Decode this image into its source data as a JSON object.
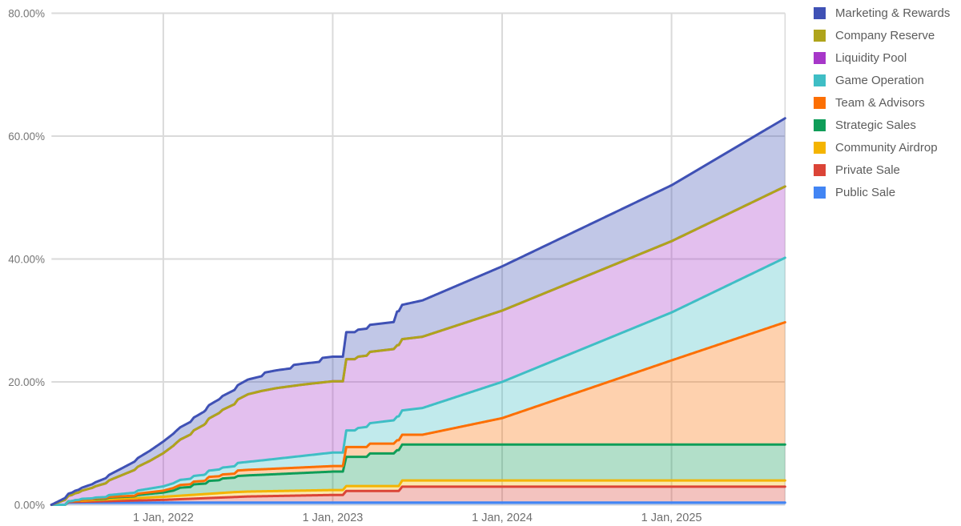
{
  "chart_data": {
    "type": "area",
    "stacked": true,
    "title": "",
    "legend_position": "right",
    "grid": true,
    "grid_color": "#dadada",
    "x_axis": {
      "range": [
        2021.34,
        2025.67
      ],
      "ticks": [
        {
          "t": 2022.0,
          "label": "1 Jan, 2022"
        },
        {
          "t": 2023.0,
          "label": "1 Jan, 2023"
        },
        {
          "t": 2024.0,
          "label": "1 Jan, 2024"
        },
        {
          "t": 2025.0,
          "label": "1 Jan, 2025"
        }
      ]
    },
    "y_axis": {
      "range": [
        0,
        80
      ],
      "ticks": [
        {
          "v": 0,
          "label": "0.00%"
        },
        {
          "v": 20,
          "label": "20.00%"
        },
        {
          "v": 40,
          "label": "40.00%"
        },
        {
          "v": 60,
          "label": "60.00%"
        },
        {
          "v": 80,
          "label": "80.00%"
        }
      ]
    },
    "series_note": "points are [decimalYear, unlockedPercentOfSupply]; series listed bottom-to-top of the stack; legend shows reverse order",
    "series": [
      {
        "name": "Public Sale",
        "color": "#4285F4",
        "points": [
          [
            2021.34,
            0
          ],
          [
            2021.42,
            0
          ],
          [
            2021.44,
            0.35
          ],
          [
            2025.67,
            0.35
          ]
        ]
      },
      {
        "name": "Private Sale",
        "color": "#DB4437",
        "points": [
          [
            2021.34,
            0
          ],
          [
            2021.42,
            0
          ],
          [
            2021.44,
            0.1
          ],
          [
            2022.0,
            0.45
          ],
          [
            2022.5,
            1.0
          ],
          [
            2023.0,
            1.25
          ],
          [
            2023.06,
            1.25
          ],
          [
            2023.08,
            1.9
          ],
          [
            2023.39,
            1.9
          ],
          [
            2023.41,
            2.6
          ],
          [
            2025.67,
            2.6
          ]
        ]
      },
      {
        "name": "Community Airdrop",
        "color": "#F4B400",
        "points": [
          [
            2021.34,
            0
          ],
          [
            2021.42,
            0
          ],
          [
            2021.44,
            0.12
          ],
          [
            2022.0,
            0.5
          ],
          [
            2022.42,
            0.8
          ],
          [
            2023.39,
            0.8
          ],
          [
            2023.41,
            1.0
          ],
          [
            2025.67,
            1.0
          ]
        ]
      },
      {
        "name": "Strategic Sales",
        "color": "#0F9D58",
        "points": [
          [
            2021.34,
            0
          ],
          [
            2021.5,
            0
          ],
          [
            2021.52,
            0.15
          ],
          [
            2021.66,
            0.15
          ],
          [
            2021.68,
            0.3
          ],
          [
            2021.83,
            0.3
          ],
          [
            2021.85,
            0.5
          ],
          [
            2022.0,
            0.7
          ],
          [
            2022.06,
            0.9
          ],
          [
            2022.1,
            1.3
          ],
          [
            2022.16,
            1.3
          ],
          [
            2022.18,
            1.7
          ],
          [
            2022.25,
            1.7
          ],
          [
            2022.27,
            2.1
          ],
          [
            2022.33,
            2.1
          ],
          [
            2022.35,
            2.35
          ],
          [
            2022.42,
            2.35
          ],
          [
            2022.44,
            2.6
          ],
          [
            2022.6,
            2.7
          ],
          [
            2023.0,
            3.0
          ],
          [
            2023.06,
            3.0
          ],
          [
            2023.08,
            4.75
          ],
          [
            2023.2,
            4.75
          ],
          [
            2023.22,
            5.3
          ],
          [
            2023.36,
            5.3
          ],
          [
            2023.38,
            5.85
          ],
          [
            2025.67,
            5.85
          ]
        ]
      },
      {
        "name": "Team & Advisors",
        "color": "#FC6F03",
        "points": [
          [
            2021.34,
            0
          ],
          [
            2021.58,
            0
          ],
          [
            2021.6,
            0.1
          ],
          [
            2021.83,
            0.1
          ],
          [
            2021.85,
            0.2
          ],
          [
            2022.0,
            0.3
          ],
          [
            2022.07,
            0.45
          ],
          [
            2022.24,
            0.45
          ],
          [
            2022.26,
            0.65
          ],
          [
            2022.42,
            0.65
          ],
          [
            2022.44,
            0.9
          ],
          [
            2023.06,
            0.9
          ],
          [
            2023.08,
            1.6
          ],
          [
            2023.53,
            1.6
          ],
          [
            2024.0,
            4.3
          ],
          [
            2025.0,
            13.7
          ],
          [
            2025.67,
            19.9
          ]
        ]
      },
      {
        "name": "Game Operation",
        "color": "#3FBEC5",
        "points": [
          [
            2021.34,
            0
          ],
          [
            2021.46,
            0
          ],
          [
            2021.48,
            0.15
          ],
          [
            2021.66,
            0.15
          ],
          [
            2021.68,
            0.3
          ],
          [
            2022.0,
            0.7
          ],
          [
            2022.5,
            1.3
          ],
          [
            2023.0,
            2.2
          ],
          [
            2023.06,
            2.2
          ],
          [
            2023.08,
            2.7
          ],
          [
            2023.13,
            2.7
          ],
          [
            2023.15,
            3.1
          ],
          [
            2024.0,
            5.9
          ],
          [
            2025.0,
            7.8
          ],
          [
            2025.67,
            10.5
          ]
        ]
      },
      {
        "name": "Liquidity Pool",
        "color": "#A737C9",
        "points": [
          [
            2021.34,
            0
          ],
          [
            2021.42,
            0.8
          ],
          [
            2021.5,
            1.2
          ],
          [
            2021.58,
            1.7
          ],
          [
            2021.67,
            2.3
          ],
          [
            2021.75,
            3.0
          ],
          [
            2021.83,
            3.7
          ],
          [
            2021.92,
            4.5
          ],
          [
            2022.0,
            5.4
          ],
          [
            2022.08,
            6.35
          ],
          [
            2022.17,
            7.3
          ],
          [
            2022.25,
            8.25
          ],
          [
            2022.33,
            9.2
          ],
          [
            2022.42,
            10.1
          ],
          [
            2022.5,
            11.0
          ],
          [
            2022.58,
            11.3
          ],
          [
            2022.67,
            11.5
          ],
          [
            2022.83,
            11.6
          ],
          [
            2025.67,
            11.6
          ]
        ]
      },
      {
        "name": "Company Reserve",
        "color": "#AFA41B",
        "points": [
          [
            2021.34,
            0
          ],
          [
            2025.67,
            0
          ]
        ]
      },
      {
        "name": "Marketing & Rewards",
        "color": "#3F51B5",
        "points": [
          [
            2021.34,
            0
          ],
          [
            2021.42,
            0.3
          ],
          [
            2021.58,
            0.6
          ],
          [
            2021.75,
            1.1
          ],
          [
            2022.0,
            1.9
          ],
          [
            2022.25,
            2.15
          ],
          [
            2022.5,
            2.4
          ],
          [
            2022.58,
            2.4
          ],
          [
            2022.6,
            2.9
          ],
          [
            2022.75,
            2.9
          ],
          [
            2022.77,
            3.4
          ],
          [
            2022.92,
            3.4
          ],
          [
            2022.94,
            4.0
          ],
          [
            2023.06,
            4.0
          ],
          [
            2023.08,
            4.4
          ],
          [
            2023.36,
            4.4
          ],
          [
            2023.38,
            5.5
          ],
          [
            2024.0,
            7.2
          ],
          [
            2025.0,
            9.1
          ],
          [
            2025.67,
            11.1
          ]
        ]
      }
    ],
    "style": {
      "fill_opacity": 0.32,
      "stroke_width": 3
    }
  }
}
